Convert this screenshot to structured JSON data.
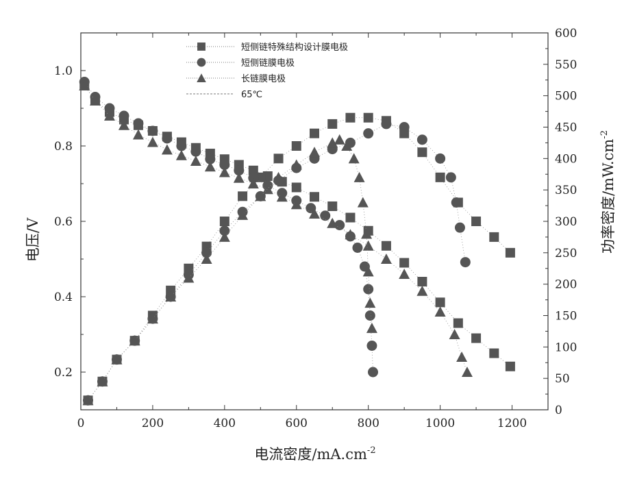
{
  "chart_data": {
    "type": "scatter",
    "title": "",
    "xlabel": "电流密度/mA.cm",
    "xlabel_sup": "-2",
    "ylabel_left": "电压/V",
    "ylabel_right": "功率密度/mW.cm",
    "ylabel_right_sup": "-2",
    "xlim": [
      0,
      1300
    ],
    "ylim_left": [
      0.1,
      1.1
    ],
    "ylim_right": [
      0,
      600
    ],
    "x_ticks": [
      "0",
      "200",
      "400",
      "600",
      "800",
      "1000",
      "1200"
    ],
    "y_left_ticks": [
      "0.2",
      "0.4",
      "0.6",
      "0.8",
      "1.0"
    ],
    "y_right_ticks": [
      "0",
      "50",
      "100",
      "150",
      "200",
      "250",
      "300",
      "350",
      "400",
      "450",
      "500",
      "550",
      "600"
    ],
    "grid": false,
    "legend_position": "top-left",
    "legend": [
      {
        "label": "短侧链特殊结构设计膜电极",
        "marker": "square",
        "style": "dotted"
      },
      {
        "label": "短侧链膜电极",
        "marker": "circle",
        "style": "dotted"
      },
      {
        "label": "长链膜电极",
        "marker": "triangle",
        "style": "dotted"
      },
      {
        "label": "65℃",
        "marker": "none",
        "style": "dashed"
      }
    ],
    "colors": {
      "marker": "#555555",
      "axis": "#333333"
    },
    "series": [
      {
        "name": "短侧链特殊结构设计膜电极",
        "metric": "voltage",
        "axis": "left",
        "marker": "square",
        "x": [
          10,
          40,
          80,
          120,
          160,
          200,
          240,
          280,
          320,
          360,
          400,
          440,
          480,
          520,
          560,
          600,
          650,
          700,
          750,
          800,
          850,
          900,
          950,
          1000,
          1050,
          1100,
          1150,
          1195
        ],
        "y": [
          0.96,
          0.92,
          0.89,
          0.87,
          0.855,
          0.84,
          0.825,
          0.81,
          0.795,
          0.78,
          0.765,
          0.75,
          0.735,
          0.72,
          0.705,
          0.69,
          0.665,
          0.64,
          0.61,
          0.575,
          0.535,
          0.49,
          0.44,
          0.385,
          0.33,
          0.29,
          0.25,
          0.215
        ]
      },
      {
        "name": "短侧链特殊结构设计膜电极",
        "metric": "power",
        "axis": "right",
        "marker": "square",
        "x": [
          20,
          60,
          100,
          150,
          200,
          250,
          300,
          350,
          400,
          450,
          500,
          550,
          600,
          650,
          700,
          750,
          800,
          850,
          900,
          950,
          1000,
          1050,
          1100,
          1150,
          1195
        ],
        "y": [
          15,
          45,
          80,
          110,
          150,
          190,
          225,
          260,
          300,
          340,
          370,
          400,
          420,
          440,
          455,
          465,
          465,
          460,
          440,
          410,
          370,
          330,
          300,
          275,
          250
        ]
      },
      {
        "name": "短侧链膜电极",
        "metric": "voltage",
        "axis": "left",
        "marker": "circle",
        "x": [
          10,
          40,
          80,
          120,
          160,
          200,
          240,
          280,
          320,
          360,
          400,
          440,
          480,
          520,
          560,
          600,
          640,
          680,
          720,
          750,
          770,
          790,
          800,
          805,
          810,
          813
        ],
        "y": [
          0.97,
          0.93,
          0.9,
          0.88,
          0.86,
          0.84,
          0.82,
          0.8,
          0.785,
          0.765,
          0.75,
          0.735,
          0.715,
          0.695,
          0.675,
          0.655,
          0.635,
          0.615,
          0.59,
          0.56,
          0.53,
          0.48,
          0.42,
          0.35,
          0.27,
          0.2
        ]
      },
      {
        "name": "短侧链膜电极",
        "metric": "power",
        "axis": "right",
        "marker": "circle",
        "x": [
          20,
          60,
          100,
          150,
          200,
          250,
          300,
          350,
          400,
          450,
          500,
          550,
          600,
          650,
          700,
          750,
          800,
          850,
          900,
          950,
          1000,
          1030,
          1045,
          1055,
          1070
        ],
        "y": [
          15,
          45,
          80,
          110,
          145,
          180,
          215,
          250,
          285,
          315,
          340,
          365,
          385,
          400,
          415,
          425,
          440,
          455,
          450,
          430,
          400,
          370,
          330,
          290,
          235
        ]
      },
      {
        "name": "长链膜电极",
        "metric": "voltage",
        "axis": "left",
        "marker": "triangle",
        "x": [
          10,
          40,
          80,
          120,
          160,
          200,
          240,
          280,
          320,
          360,
          400,
          440,
          480,
          520,
          560,
          600,
          650,
          700,
          750,
          800,
          850,
          900,
          950,
          1000,
          1040,
          1060,
          1075
        ],
        "y": [
          0.96,
          0.92,
          0.88,
          0.855,
          0.83,
          0.81,
          0.79,
          0.775,
          0.76,
          0.745,
          0.73,
          0.715,
          0.7,
          0.685,
          0.665,
          0.645,
          0.62,
          0.595,
          0.565,
          0.535,
          0.5,
          0.46,
          0.415,
          0.36,
          0.3,
          0.24,
          0.2
        ]
      },
      {
        "name": "长链膜电极",
        "metric": "power",
        "axis": "right",
        "marker": "triangle",
        "x": [
          20,
          60,
          100,
          150,
          200,
          250,
          300,
          350,
          400,
          450,
          500,
          550,
          600,
          650,
          700,
          720,
          740,
          760,
          775,
          785,
          795,
          800,
          805,
          810
        ],
        "y": [
          15,
          45,
          80,
          110,
          145,
          180,
          210,
          240,
          275,
          310,
          340,
          370,
          390,
          410,
          425,
          430,
          420,
          400,
          370,
          330,
          280,
          220,
          170,
          130
        ]
      }
    ]
  }
}
